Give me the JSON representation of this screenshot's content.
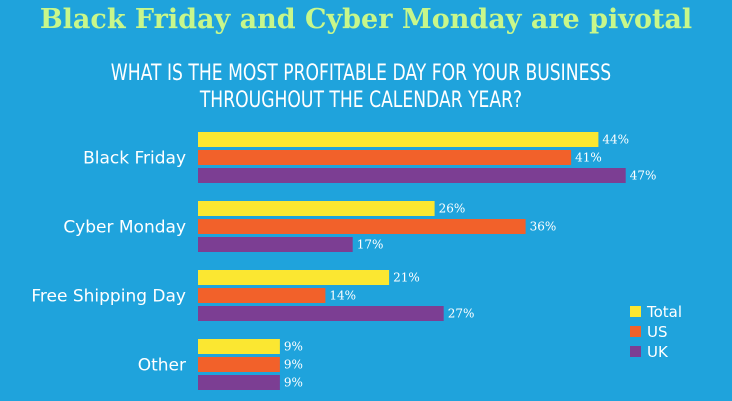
{
  "headline": "Black Friday and Cyber Monday are pivotal",
  "question": [
    "WHAT IS THE MOST PROFITABLE DAY FOR YOUR BUSINESS",
    "THROUGHOUT THE CALENDAR YEAR?"
  ],
  "colors": {
    "background": "#1fa3dc",
    "headline": "#c8f78a",
    "total": "#fbe731",
    "us": "#f2612a",
    "uk": "#7c3e93"
  },
  "chart_data": {
    "type": "bar",
    "orientation": "horizontal",
    "title": "",
    "categories": [
      "Black Friday",
      "Cyber Monday",
      "Free Shipping Day",
      "Other"
    ],
    "series": [
      {
        "name": "Total",
        "values": [
          44,
          26,
          21,
          9
        ]
      },
      {
        "name": "US",
        "values": [
          41,
          36,
          14,
          9
        ]
      },
      {
        "name": "UK",
        "values": [
          47,
          17,
          27,
          9
        ]
      }
    ],
    "value_suffix": "%",
    "xlim": [
      0,
      50
    ],
    "grid": false,
    "legend": "bottom-right"
  }
}
